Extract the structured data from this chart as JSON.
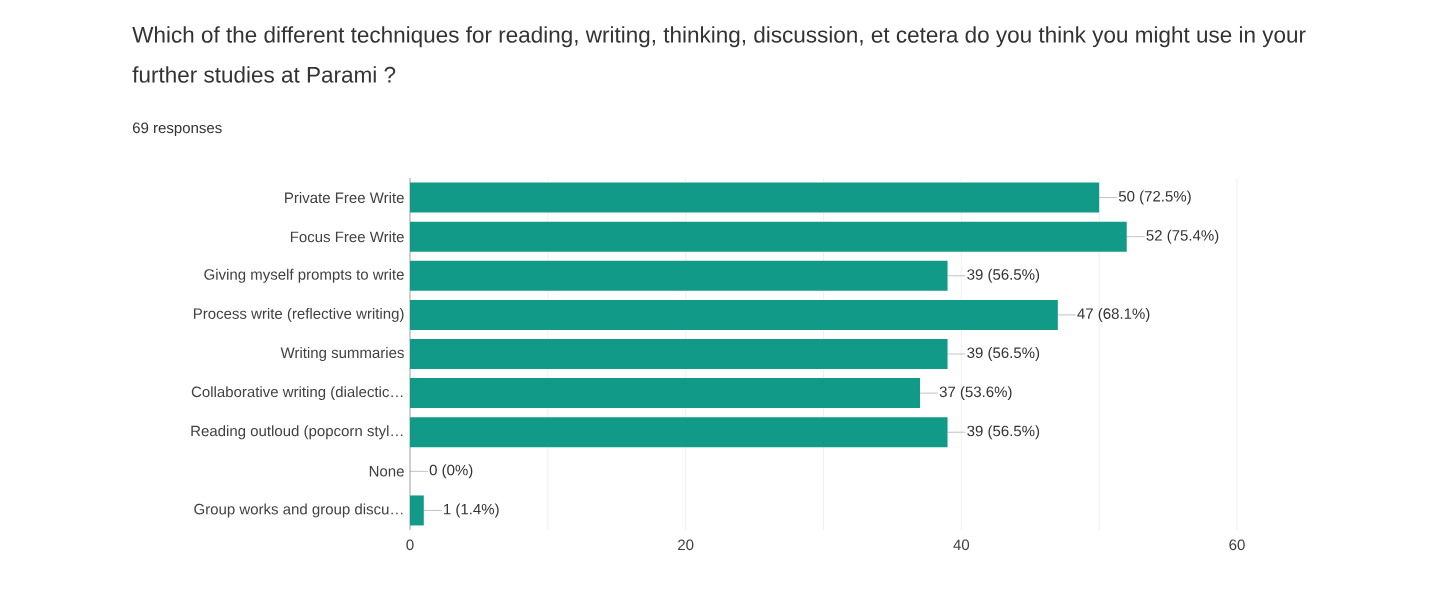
{
  "chart_data": {
    "type": "bar",
    "orientation": "horizontal",
    "title": "Which of the different techniques for reading, writing, thinking, discussion, et cetera do you think you might use in your further studies at Parami ?",
    "subtitle": "69 responses",
    "categories": [
      "Private Free Write",
      "Focus Free Write",
      "Giving myself prompts to write",
      "Process write (reflective writing)",
      "Writing summaries",
      "Collaborative writing (dialectic…",
      "Reading outloud (popcorn styl…",
      "None",
      "Group works and group discu…"
    ],
    "values": [
      50,
      52,
      39,
      47,
      39,
      37,
      39,
      0,
      1
    ],
    "value_labels": [
      "50 (72.5%)",
      "52 (75.4%)",
      "39 (56.5%)",
      "47 (68.1%)",
      "39 (56.5%)",
      "37 (53.6%)",
      "39 (56.5%)",
      "0 (0%)",
      "1 (1.4%)"
    ],
    "color": "#129a88",
    "xlim": [
      0,
      60
    ],
    "xticks": [
      0,
      {
        "value": 10,
        "label": null
      },
      20,
      {
        "value": 30,
        "label": null
      },
      40,
      {
        "value": 50,
        "label": null
      },
      60
    ],
    "grid": "x"
  }
}
